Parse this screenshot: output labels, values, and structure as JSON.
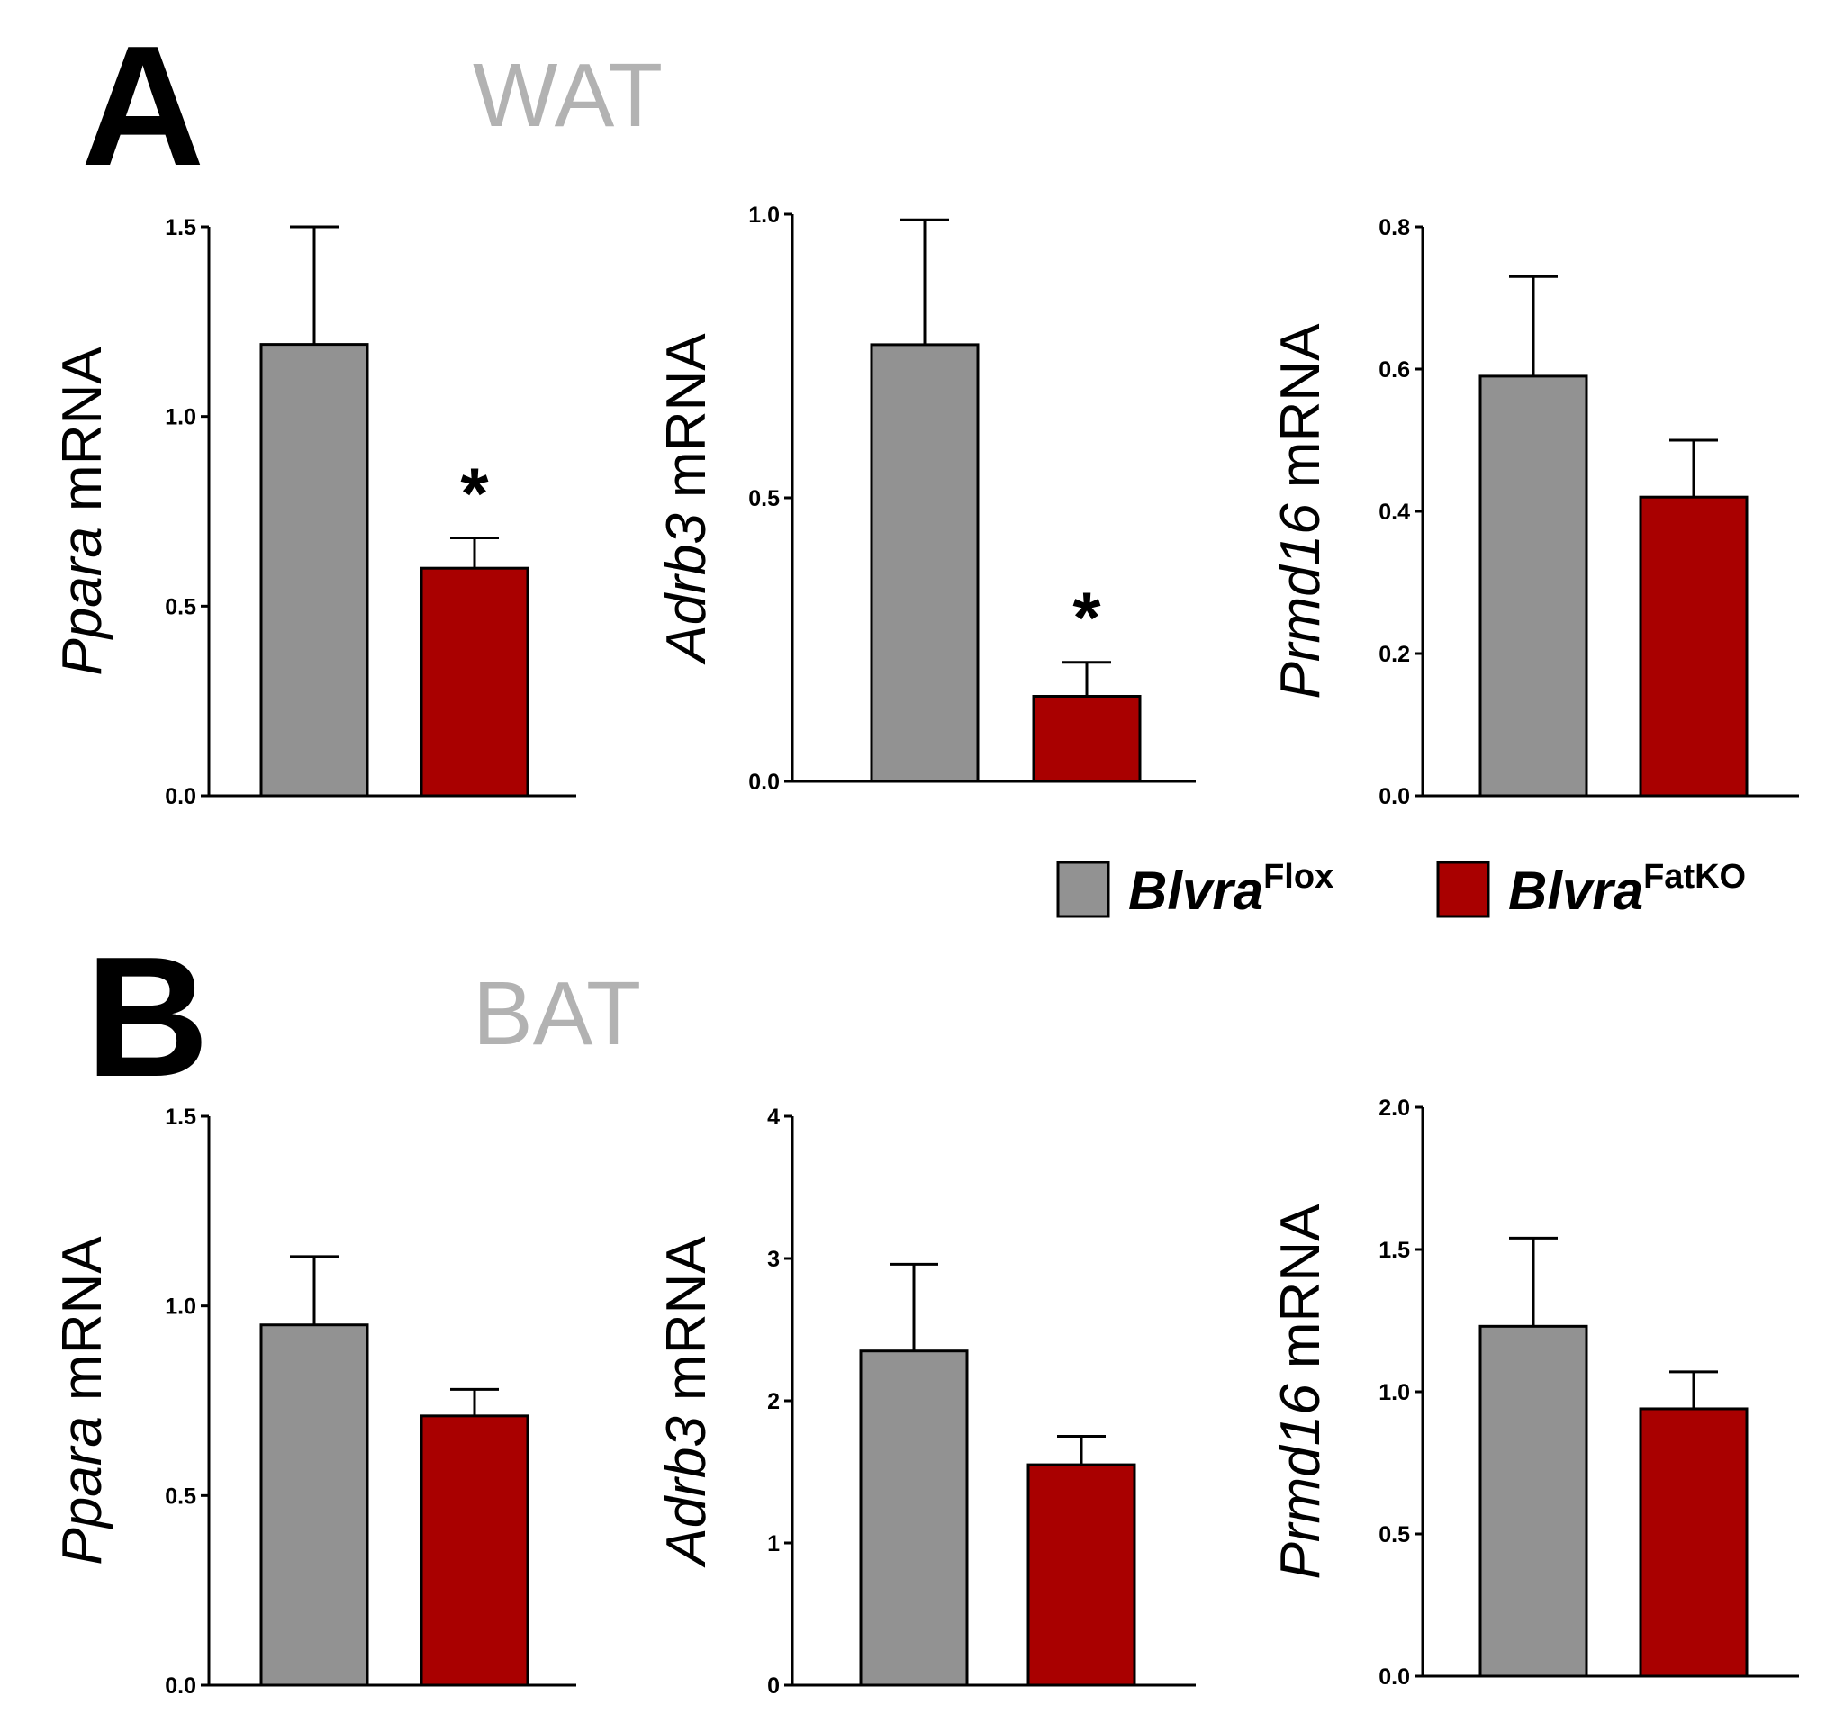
{
  "colors": {
    "flox": "#929292",
    "fatko": "#a90000",
    "axis": "#000000"
  },
  "panels": [
    {
      "letter": "A",
      "tissue": "WAT"
    },
    {
      "letter": "B",
      "tissue": "BAT"
    }
  ],
  "legend": [
    {
      "name": "Blvra",
      "sup": "Flox",
      "color": "#929292"
    },
    {
      "name": "Blvra",
      "sup": "FatKO",
      "color": "#a90000"
    }
  ],
  "chart_data": [
    {
      "type": "bar",
      "panel": "A",
      "tissue": "WAT",
      "gene": "Ppara",
      "ylabel_suffix": " mRNA",
      "categories": [
        "BlvraFlox",
        "BlvraFatKO"
      ],
      "values": [
        1.19,
        0.6
      ],
      "errors": [
        0.31,
        0.08
      ],
      "ylim": [
        0,
        1.5
      ],
      "ticks": [
        "0.0",
        "0.5",
        "1.0",
        "1.5"
      ],
      "significant": [
        false,
        true
      ],
      "sig_label": "*"
    },
    {
      "type": "bar",
      "panel": "A",
      "tissue": "WAT",
      "gene": "Adrb3",
      "ylabel_suffix": " mRNA",
      "categories": [
        "BlvraFlox",
        "BlvraFatKO"
      ],
      "values": [
        0.77,
        0.15
      ],
      "errors": [
        0.22,
        0.06
      ],
      "ylim": [
        0,
        1.0
      ],
      "ticks": [
        "0.0",
        "0.5",
        "1.0"
      ],
      "significant": [
        false,
        true
      ],
      "sig_label": "*"
    },
    {
      "type": "bar",
      "panel": "A",
      "tissue": "WAT",
      "gene": "Prmd16",
      "ylabel_suffix": " mRNA",
      "categories": [
        "BlvraFlox",
        "BlvraFatKO"
      ],
      "values": [
        0.59,
        0.42
      ],
      "errors": [
        0.14,
        0.08
      ],
      "ylim": [
        0,
        0.8
      ],
      "ticks": [
        "0.0",
        "0.2",
        "0.4",
        "0.6",
        "0.8"
      ],
      "significant": [
        false,
        false
      ],
      "sig_label": "*"
    },
    {
      "type": "bar",
      "panel": "B",
      "tissue": "BAT",
      "gene": "Ppara",
      "ylabel_suffix": " mRNA",
      "categories": [
        "BlvraFlox",
        "BlvraFatKO"
      ],
      "values": [
        0.95,
        0.71
      ],
      "errors": [
        0.18,
        0.07
      ],
      "ylim": [
        0,
        1.5
      ],
      "ticks": [
        "0.0",
        "0.5",
        "1.0",
        "1.5"
      ],
      "significant": [
        false,
        false
      ],
      "sig_label": "*"
    },
    {
      "type": "bar",
      "panel": "B",
      "tissue": "BAT",
      "gene": "Adrb3",
      "ylabel_suffix": " mRNA",
      "categories": [
        "BlvraFlox",
        "BlvraFatKO"
      ],
      "values": [
        2.35,
        1.55
      ],
      "errors": [
        0.61,
        0.2
      ],
      "ylim": [
        0,
        4
      ],
      "ticks": [
        "0",
        "1",
        "2",
        "3",
        "4"
      ],
      "significant": [
        false,
        false
      ],
      "sig_label": "*"
    },
    {
      "type": "bar",
      "panel": "B",
      "tissue": "BAT",
      "gene": "Prmd16",
      "ylabel_suffix": " mRNA",
      "categories": [
        "BlvraFlox",
        "BlvraFatKO"
      ],
      "values": [
        1.23,
        0.94
      ],
      "errors": [
        0.31,
        0.13
      ],
      "ylim": [
        0,
        2.0
      ],
      "ticks": [
        "0.0",
        "0.5",
        "1.0",
        "1.5",
        "2.0"
      ],
      "significant": [
        false,
        false
      ],
      "sig_label": "*"
    }
  ]
}
